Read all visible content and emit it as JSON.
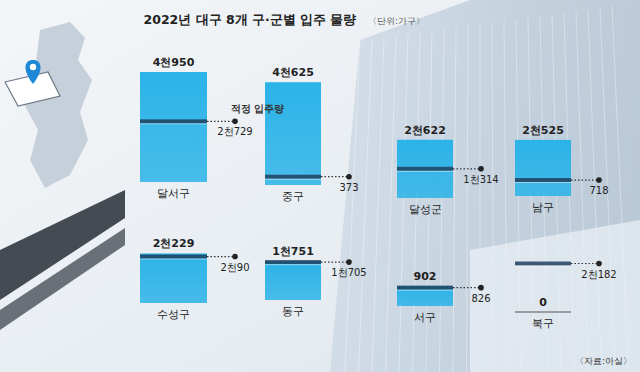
{
  "chart_data": {
    "type": "bar",
    "title": "2022년 대구 8개 구·군별 입주 물량",
    "subtitle": "〈단위:가구〉",
    "annotations": [
      "〈자료:아실〉"
    ],
    "categories": [
      "달서구",
      "중구",
      "달성군",
      "남구",
      "수성구",
      "동구",
      "서구",
      "북구"
    ],
    "series": [
      {
        "color": "#2bb3e8",
        "values": [
          4950,
          4625,
          2622,
          2525,
          2229,
          1751,
          902,
          0
        ],
        "value_labels": [
          "4천950",
          "4천625",
          "2천622",
          "2천525",
          "2천229",
          "1천751",
          "902",
          "0"
        ]
      },
      {
        "name": "적정 입주량",
        "type": "line",
        "color": "#1d3f5e",
        "marker": "dot",
        "line_style": "dotted",
        "values": [
          2729,
          373,
          1314,
          718,
          2090,
          1705,
          826,
          2182
        ],
        "value_labels": [
          "2천729",
          "373",
          "1천314",
          "718",
          "2천90",
          "1천705",
          "826",
          "2천182"
        ]
      }
    ],
    "data_labels": true,
    "tick_labels": false,
    "grid": false
  }
}
